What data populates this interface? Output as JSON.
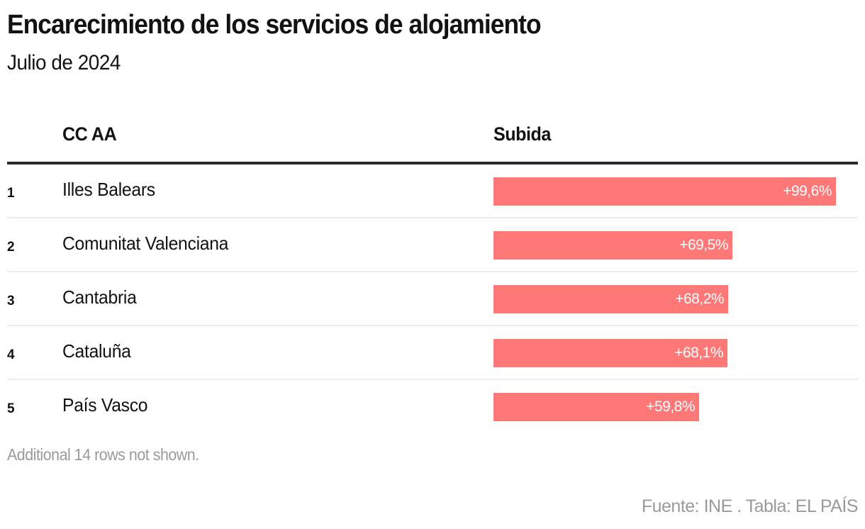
{
  "header": {
    "title": "Encarecimiento de los servicios de alojamiento",
    "subtitle": "Julio de 2024"
  },
  "table": {
    "columns": {
      "rank": "",
      "name": "CC AA",
      "value": "Subida"
    },
    "bar_color": "#ff7878",
    "rows": [
      {
        "rank": "1",
        "name": "Illes Balears",
        "value": 99.6,
        "label": "+99,6%"
      },
      {
        "rank": "2",
        "name": "Comunitat Valenciana",
        "value": 69.5,
        "label": "+69,5%"
      },
      {
        "rank": "3",
        "name": "Cantabria",
        "value": 68.2,
        "label": "+68,2%"
      },
      {
        "rank": "4",
        "name": "Cataluña",
        "value": 68.1,
        "label": "+68,1%"
      },
      {
        "rank": "5",
        "name": "País Vasco",
        "value": 59.8,
        "label": "+59,8%"
      }
    ],
    "note": "Additional 14 rows not shown."
  },
  "footer": {
    "source": "Fuente: INE . Tabla: EL PAÍS"
  },
  "chart_data": {
    "type": "table",
    "title": "Encarecimiento de los servicios de alojamiento",
    "subtitle": "Julio de 2024",
    "columns": [
      "",
      "CC AA",
      "Subida"
    ],
    "categories": [
      "Illes Balears",
      "Comunitat Valenciana",
      "Cantabria",
      "Cataluña",
      "País Vasco"
    ],
    "values": [
      99.6,
      69.5,
      68.2,
      68.1,
      59.8
    ],
    "value_format": "+0,0%",
    "xlim": [
      0,
      106
    ],
    "note": "Additional 14 rows not shown.",
    "source": "Fuente: INE . Tabla: EL PAÍS"
  }
}
